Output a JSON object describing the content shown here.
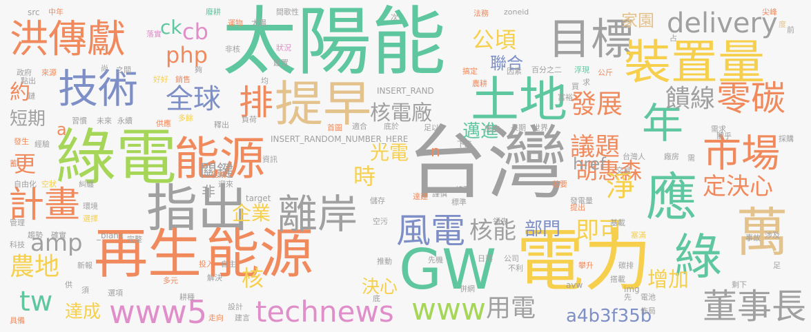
{
  "colors": {
    "background": "#f7f7f7",
    "orange": "#f08a5d",
    "green": "#76c893",
    "yellow": "#f6d04d",
    "gray": "#a0a0a0",
    "blue": "#7d8fc6",
    "pink": "#e08ec9",
    "lime": "#a6d657",
    "tan": "#e4c28b",
    "teal": "#5ec7a0"
  },
  "words": {
    "taiyangneng": "太陽能",
    "taiwan": "台灣",
    "lvdian": "綠電",
    "dianli": "電力",
    "zaisheng": "再生",
    "nengyuan": "能源",
    "nengyuan2": "能源",
    "hongchuanxian": "洪傳獻",
    "jishu": "技術",
    "tidao": "提早",
    "mubiao": "目標",
    "zhuangzhiliang": "裝置量",
    "tudi": "土地",
    "nian": "年",
    "gw": "GW",
    "zhichu": "指出",
    "lian": "離岸",
    "shichang": "市場",
    "wan": "萬",
    "ying": "應",
    "lv": "綠",
    "fengdian": "風電",
    "jihua": "計畫",
    "lingtan": "零碳",
    "pai": "排",
    "technews": "technews",
    "www5": "www5",
    "www": "www",
    "dongshizhang": "董事長",
    "delivery": "delivery",
    "php": "php",
    "quanqiu": "全球",
    "fazhan": "發展",
    "kuixian": "饋線",
    "hedianchang": "核電廠",
    "hehuisen": "胡惠森",
    "jing": "淨",
    "dingjuexin": "定決心",
    "yiti": "議題",
    "guangdian": "光電",
    "shi": "時",
    "qiye": "企業",
    "heneng": "核能",
    "bumen": "部門",
    "jike": "即可",
    "nongdi": "農地",
    "yongdian": "用電",
    "tw": "tw",
    "amp": "amp",
    "daicheng": "達成",
    "a4b3f35b": "a4b3f35b",
    "gongqing": "公頃",
    "lianhe": "聯合",
    "jiayuan": "家園",
    "gengxin": "更",
    "yue": "約",
    "duanqi": "短期",
    "guanjian": "關鍵",
    "mainjin": "邁進",
    "href": "href",
    "zengjia": "增加",
    "juexin": "決心",
    "he": "核",
    "cb": "cb",
    "ck": "ck",
    "a": "a",
    "fei": "非",
    "n": "n",
    "zoneid": "zoneid",
    "insert_rand": "INSERT_RAND",
    "insert_random": "INSERT_RANDOM_NUMBER_HERE",
    "target": "target",
    "blank": "_blank",
    "src": "src",
    "img": "img",
    "avw": "avw",
    "small": [
      "中年",
      "src",
      "廢耕",
      "運物",
      "太陽",
      "間歌性",
      "次",
      "法務",
      "zoneid",
      "尖峰",
      "度",
      "前",
      "占",
      "落實",
      "來源",
      "之間",
      "非核",
      "建置",
      "狀況",
      "搞定",
      "因素",
      "百分之二",
      "浮現",
      "公斤",
      "政府",
      "點出",
      "尚",
      "好好",
      "銷售",
      "夠",
      "均",
      "農耕",
      "買",
      "求",
      "富裕",
      "鏈",
      "習慣",
      "未來",
      "永續",
      "供應",
      "多餘",
      "釋出",
      "負荷",
      "首圖",
      "適合",
      "底於",
      "足以",
      "態度",
      "長期",
      "世界",
      "需求",
      "關乎",
      "發生",
      "經驗",
      "台灣人",
      "廠房",
      "需",
      "採購",
      "蓄",
      "自由化",
      "空狀",
      "迎來",
      "足夠",
      "交易",
      "若要",
      "糾纏",
      "下降",
      "環境",
      "儲存",
      "達建",
      "謹慎",
      "總務",
      "標準",
      "發電量",
      "提出",
      "管理",
      "選擇",
      "確實",
      "空污",
      "領先",
      "基載",
      "塞滿",
      "趨勢",
      "完整",
      "事故",
      "涉及",
      "科技",
      "新報",
      "投入",
      "自主",
      "推動",
      "日落",
      "公司",
      "不利",
      "攀升",
      "碳排",
      "先機",
      "足",
      "供",
      "須",
      "多元",
      "解決",
      "搭載",
      "剩下",
      "具備",
      "選項",
      "耕種",
      "設計",
      "建言",
      "併網",
      "電池",
      "佈局",
      "走向",
      "底",
      "先",
      "資訊"
    ]
  }
}
